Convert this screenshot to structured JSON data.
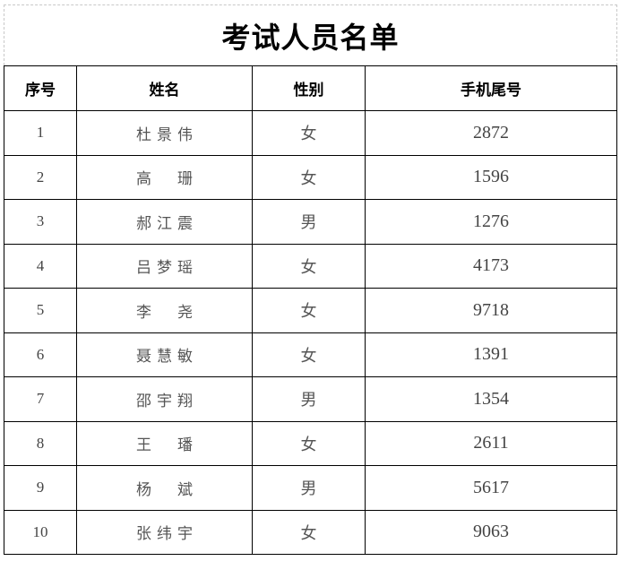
{
  "title": "考试人员名单",
  "columns": [
    "序号",
    "姓名",
    "性别",
    "手机尾号"
  ],
  "rows": [
    {
      "no": "1",
      "name": "杜景伟",
      "gender": "女",
      "phone": "2872"
    },
    {
      "no": "2",
      "name": "高　珊",
      "gender": "女",
      "phone": "1596"
    },
    {
      "no": "3",
      "name": "郝江震",
      "gender": "男",
      "phone": "1276"
    },
    {
      "no": "4",
      "name": "吕梦瑶",
      "gender": "女",
      "phone": "4173"
    },
    {
      "no": "5",
      "name": "李　尧",
      "gender": "女",
      "phone": "9718"
    },
    {
      "no": "6",
      "name": "聂慧敏",
      "gender": "女",
      "phone": "1391"
    },
    {
      "no": "7",
      "name": "邵宇翔",
      "gender": "男",
      "phone": "1354"
    },
    {
      "no": "8",
      "name": "王　璠",
      "gender": "女",
      "phone": "2611"
    },
    {
      "no": "9",
      "name": "杨　斌",
      "gender": "男",
      "phone": "5617"
    },
    {
      "no": "10",
      "name": "张纬宇",
      "gender": "女",
      "phone": "9063"
    }
  ]
}
